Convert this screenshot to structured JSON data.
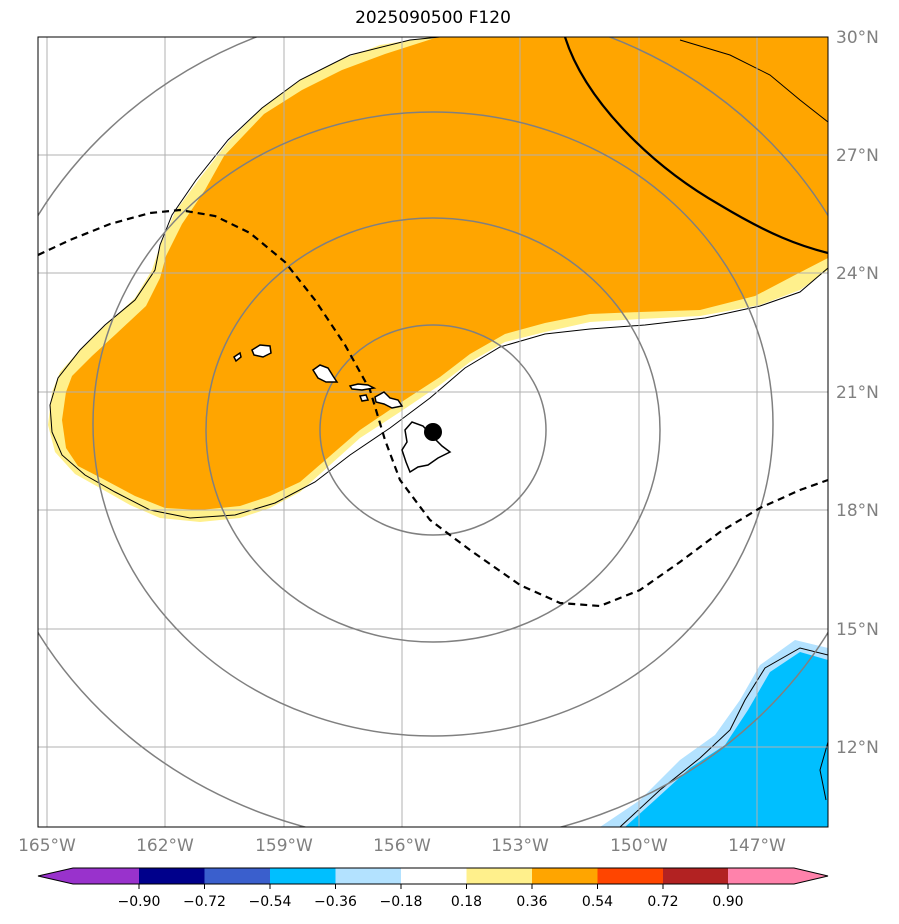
{
  "title": "2025090500 F120",
  "map": {
    "lon_labels": [
      "165°W",
      "162°W",
      "159°W",
      "156°W",
      "153°W",
      "150°W",
      "147°W"
    ],
    "lat_labels": [
      "30°N",
      "27°N",
      "24°N",
      "21°N",
      "18°N",
      "15°N",
      "12°N"
    ],
    "colors": {
      "orange": "#ffa500",
      "light_yellow": "#fff08c",
      "deep_sky": "#00bfff",
      "light_blue": "#b3e2ff",
      "ring": "#808080",
      "grid": "#b0b0b0"
    }
  },
  "colorbar": {
    "ticks": [
      "−0.90",
      "−0.72",
      "−0.54",
      "−0.36",
      "−0.18",
      "0.18",
      "0.36",
      "0.54",
      "0.72",
      "0.90"
    ],
    "colors": [
      "#9932cc",
      "#00008b",
      "#3a5fcd",
      "#00bfff",
      "#b3e2ff",
      "#ffffff",
      "#fff08c",
      "#ffa500",
      "#ff4500",
      "#b22222",
      "#ff82ab"
    ]
  }
}
